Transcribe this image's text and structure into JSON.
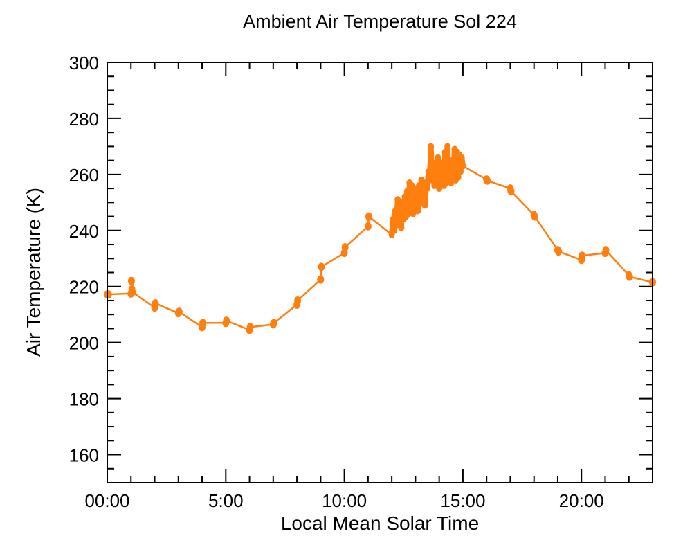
{
  "chart_data": {
    "type": "line",
    "title": "Ambient Air Temperature Sol 224",
    "xlabel": "Local Mean Solar Time",
    "ylabel": "Air Temperature (K)",
    "xlim": [
      0,
      23
    ],
    "ylim": [
      150,
      300
    ],
    "x_unit": "hours",
    "x_ticks": [
      0,
      5,
      10,
      15,
      20
    ],
    "x_tick_labels": [
      "00:00",
      "5:00",
      "10:00",
      "15:00",
      "20:00"
    ],
    "x_minor_step": 1,
    "y_ticks": [
      160,
      180,
      200,
      220,
      240,
      260,
      280,
      300
    ],
    "y_tick_labels": [
      "160",
      "180",
      "200",
      "220",
      "240",
      "260",
      "280",
      "300"
    ],
    "y_minor_step": 5,
    "grid": false,
    "series": [
      {
        "name": "Ambient Air Temperature",
        "color": "#ff7f0e",
        "x": [
          0.0,
          0.05,
          1.0,
          1.02,
          1.04,
          1.06,
          2.0,
          2.03,
          3.0,
          3.03,
          4.0,
          4.03,
          5.0,
          5.03,
          6.0,
          6.03,
          7.0,
          7.03,
          8.0,
          8.03,
          9.0,
          9.03,
          10.0,
          10.03,
          11.0,
          11.03,
          12.0,
          12.05,
          12.1,
          12.15,
          12.2,
          12.25,
          12.3,
          12.35,
          12.4,
          12.45,
          12.5,
          12.55,
          12.6,
          12.65,
          12.7,
          12.75,
          12.8,
          12.85,
          12.9,
          12.95,
          13.0,
          13.05,
          13.1,
          13.15,
          13.2,
          13.25,
          13.3,
          13.35,
          13.4,
          13.45,
          13.5,
          13.55,
          13.6,
          13.65,
          13.7,
          13.75,
          13.8,
          13.85,
          13.9,
          13.95,
          14.0,
          14.05,
          14.1,
          14.15,
          14.2,
          14.25,
          14.3,
          14.35,
          14.4,
          14.45,
          14.5,
          14.55,
          14.6,
          14.65,
          14.7,
          14.75,
          14.8,
          14.85,
          14.9,
          14.95,
          15.0,
          16.0,
          16.03,
          17.0,
          17.03,
          18.0,
          18.03,
          19.0,
          19.03,
          20.0,
          20.03,
          21.0,
          21.03,
          22.0,
          22.03,
          23.0
        ],
        "y": [
          217.2,
          217.2,
          217.5,
          222.0,
          219.0,
          218.0,
          212.5,
          214.0,
          210.5,
          211.0,
          205.5,
          207.0,
          207.0,
          207.8,
          204.5,
          205.5,
          206.5,
          207.0,
          213.5,
          215.0,
          222.5,
          227.0,
          232.0,
          234.0,
          241.5,
          245.0,
          238.5,
          244.0,
          240.0,
          247.0,
          242.0,
          251.0,
          243.0,
          249.0,
          241.0,
          250.0,
          244.0,
          252.0,
          245.0,
          254.0,
          246.0,
          257.0,
          248.0,
          256.0,
          246.0,
          255.0,
          249.0,
          254.0,
          247.0,
          256.0,
          250.0,
          258.0,
          252.0,
          257.0,
          249.0,
          256.0,
          255.0,
          261.0,
          258.0,
          270.0,
          258.0,
          264.0,
          256.0,
          262.0,
          257.0,
          266.0,
          255.0,
          263.0,
          258.0,
          264.0,
          256.0,
          268.0,
          257.0,
          270.0,
          258.0,
          265.0,
          257.0,
          263.0,
          259.0,
          269.0,
          258.0,
          268.0,
          259.0,
          267.0,
          261.0,
          266.0,
          263.0,
          258.2,
          257.8,
          255.0,
          254.0,
          245.5,
          245.0,
          233.0,
          232.5,
          229.5,
          231.0,
          232.0,
          233.0,
          224.0,
          223.5,
          221.5
        ]
      }
    ]
  }
}
